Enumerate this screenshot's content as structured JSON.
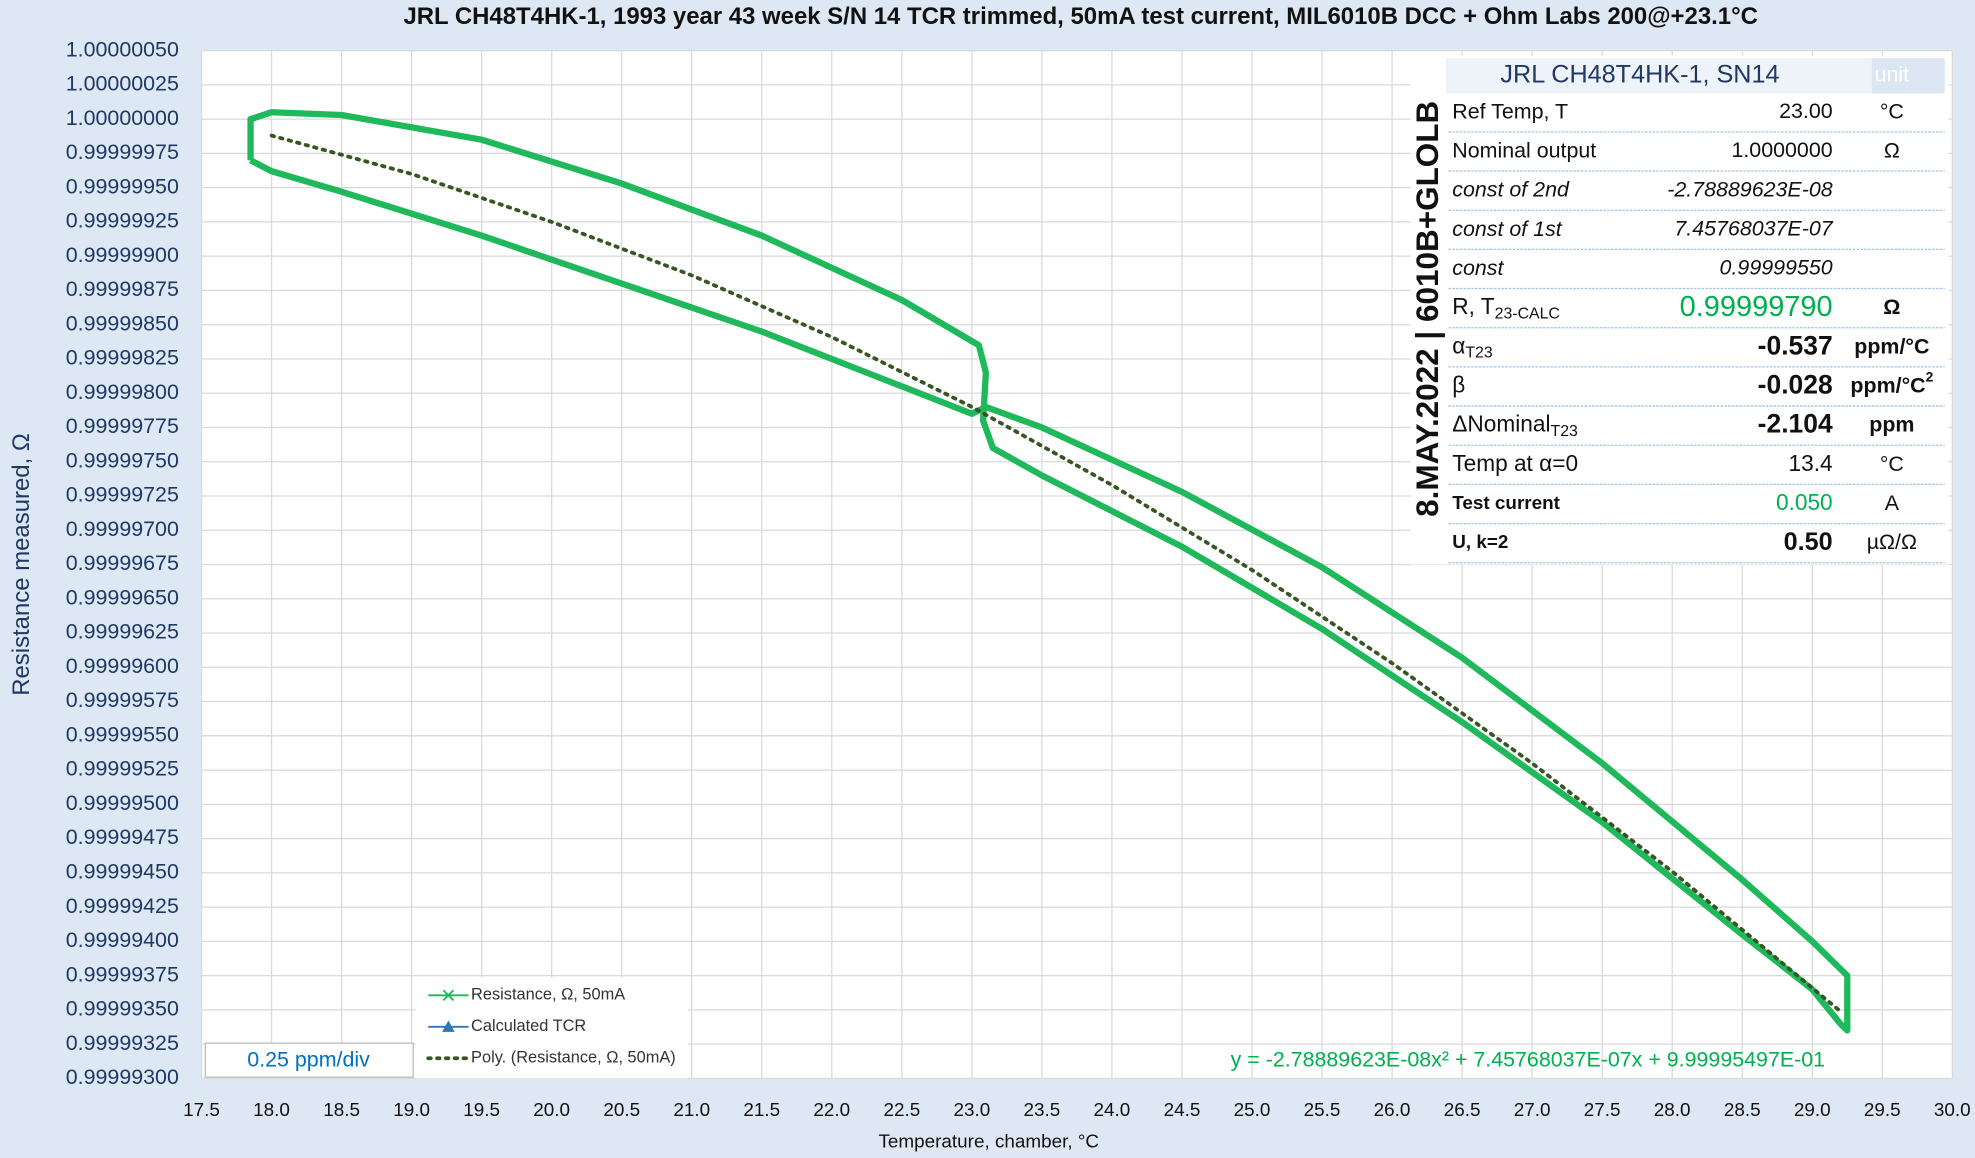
{
  "chart_data": {
    "type": "scatter",
    "title": "JRL CH48T4HK-1, 1993 year 43 week S/N 14 TCR trimmed, 50mA  test current, MIL6010B DCC + Ohm Labs 200@+23.1°C",
    "x_label": "Temperature, chamber, °C",
    "y_label": "Resistance measured, Ω",
    "scale_note": "0.25 ppm/div",
    "equation": "y = -2.78889623E-08x² + 7.45768037E-07x + 9.99995497E-01",
    "side_label": "8.MAY.2022 | 6010B+GLOLB",
    "grid": true,
    "xlim": [
      17.5,
      30.0
    ],
    "ylim": [
      0.999993,
      1.0000005
    ],
    "xticks": [
      {
        "value": 17.5,
        "label": "17.5"
      },
      {
        "value": 18,
        "label": "18.0"
      },
      {
        "value": 18.5,
        "label": "18.5"
      },
      {
        "value": 19,
        "label": "19.0"
      },
      {
        "value": 19.5,
        "label": "19.5"
      },
      {
        "value": 20,
        "label": "20.0"
      },
      {
        "value": 20.5,
        "label": "20.5"
      },
      {
        "value": 21,
        "label": "21.0"
      },
      {
        "value": 21.5,
        "label": "21.5"
      },
      {
        "value": 22,
        "label": "22.0"
      },
      {
        "value": 22.5,
        "label": "22.5"
      },
      {
        "value": 23,
        "label": "23.0"
      },
      {
        "value": 23.5,
        "label": "23.5"
      },
      {
        "value": 24,
        "label": "24.0"
      },
      {
        "value": 24.5,
        "label": "24.5"
      },
      {
        "value": 25,
        "label": "25.0"
      },
      {
        "value": 25.5,
        "label": "25.5"
      },
      {
        "value": 26,
        "label": "26.0"
      },
      {
        "value": 26.5,
        "label": "26.5"
      },
      {
        "value": 27,
        "label": "27.0"
      },
      {
        "value": 27.5,
        "label": "27.5"
      },
      {
        "value": 28,
        "label": "28.0"
      },
      {
        "value": 28.5,
        "label": "28.5"
      },
      {
        "value": 29,
        "label": "29.0"
      },
      {
        "value": 29.5,
        "label": "29.5"
      },
      {
        "value": 30,
        "label": "30.0"
      }
    ],
    "yticks": [
      {
        "value": 0.999993,
        "label": "0.99999300"
      },
      {
        "value": 0.99999325,
        "label": "0.99999325"
      },
      {
        "value": 0.9999935,
        "label": "0.99999350"
      },
      {
        "value": 0.99999375,
        "label": "0.99999375"
      },
      {
        "value": 0.999994,
        "label": "0.99999400"
      },
      {
        "value": 0.99999425,
        "label": "0.99999425"
      },
      {
        "value": 0.9999945,
        "label": "0.99999450"
      },
      {
        "value": 0.99999475,
        "label": "0.99999475"
      },
      {
        "value": 0.999995,
        "label": "0.99999500"
      },
      {
        "value": 0.99999525,
        "label": "0.99999525"
      },
      {
        "value": 0.9999955,
        "label": "0.99999550"
      },
      {
        "value": 0.99999575,
        "label": "0.99999575"
      },
      {
        "value": 0.999996,
        "label": "0.99999600"
      },
      {
        "value": 0.99999625,
        "label": "0.99999625"
      },
      {
        "value": 0.9999965,
        "label": "0.99999650"
      },
      {
        "value": 0.99999675,
        "label": "0.99999675"
      },
      {
        "value": 0.999997,
        "label": "0.99999700"
      },
      {
        "value": 0.99999725,
        "label": "0.99999725"
      },
      {
        "value": 0.9999975,
        "label": "0.99999750"
      },
      {
        "value": 0.99999775,
        "label": "0.99999775"
      },
      {
        "value": 0.999998,
        "label": "0.99999800"
      },
      {
        "value": 0.99999825,
        "label": "0.99999825"
      },
      {
        "value": 0.9999985,
        "label": "0.99999850"
      },
      {
        "value": 0.99999875,
        "label": "0.99999875"
      },
      {
        "value": 0.999999,
        "label": "0.99999900"
      },
      {
        "value": 0.99999925,
        "label": "0.99999925"
      },
      {
        "value": 0.9999995,
        "label": "0.99999950"
      },
      {
        "value": 0.99999975,
        "label": "0.99999975"
      },
      {
        "value": 1.0,
        "label": "1.00000000"
      },
      {
        "value": 1.00000025,
        "label": "1.00000025"
      },
      {
        "value": 1.0000005,
        "label": "1.00000050"
      }
    ],
    "series": [
      {
        "name": "Resistance, Ω, 50mA",
        "color": "#1fb85a",
        "style": "marker-line",
        "x": [
          17.85,
          17.85,
          18.0,
          18.5,
          19.5,
          20.5,
          21.5,
          22.5,
          23.05,
          23.1,
          23.08,
          23.15,
          23.5,
          24.5,
          25.5,
          26.5,
          27.5,
          28.5,
          29.0,
          29.2,
          29.25,
          29.25,
          29.0,
          28.5,
          27.5,
          26.5,
          25.5,
          24.5,
          23.5,
          23.1,
          23.0,
          22.5,
          21.5,
          20.5,
          19.5,
          18.5,
          18.0,
          17.85
        ],
        "values": [
          0.9999997,
          1.0,
          1.00000005,
          1.00000003,
          0.99999985,
          0.99999953,
          0.99999915,
          0.99999868,
          0.99999835,
          0.99999815,
          0.9999978,
          0.9999976,
          0.9999974,
          0.99999688,
          0.99999628,
          0.9999956,
          0.99999487,
          0.99999405,
          0.99999365,
          0.9999934,
          0.99999335,
          0.99999375,
          0.999994,
          0.99999445,
          0.9999953,
          0.99999607,
          0.99999673,
          0.99999728,
          0.99999775,
          0.9999979,
          0.99999785,
          0.99999805,
          0.99999845,
          0.9999988,
          0.99999915,
          0.99999947,
          0.99999962,
          0.9999997
        ]
      },
      {
        "name": "Calculated TCR",
        "color": "#2e75b6",
        "style": "triangle-line",
        "x": [],
        "values": []
      },
      {
        "name": "Poly. (Resistance, Ω, 50mA)",
        "color": "#375623",
        "style": "dotted",
        "x": [
          18,
          19,
          20,
          21,
          22,
          23,
          24,
          25,
          26,
          27,
          28,
          29.2
        ],
        "values": [
          0.99999988,
          0.9999996,
          0.99999925,
          0.99999886,
          0.99999841,
          0.9999979,
          0.99999733,
          0.99999671,
          0.99999603,
          0.9999953,
          0.99999451,
          0.99999349
        ]
      }
    ]
  },
  "table": {
    "title": "JRL CH48T4HK-1, SN14",
    "unit_header": "unit",
    "rows": [
      {
        "label": "Ref Temp, T",
        "value": "23.00",
        "unit": "°C"
      },
      {
        "label": "Nominal output",
        "value": "1.0000000",
        "unit": "Ω"
      },
      {
        "label": "const of 2nd",
        "value": "-2.78889623E-08"
      },
      {
        "label": "const of 1st",
        "value": "7.45768037E-07"
      },
      {
        "label": "const",
        "value": "0.99999550"
      },
      {
        "label": "R, T",
        "sub": "23-CALC",
        "value": "0.99999790",
        "unit": "Ω"
      },
      {
        "label": "α",
        "sub": "T23",
        "value": "-0.537",
        "unit": "ppm/°C"
      },
      {
        "label": "β",
        "value": "-0.028",
        "unit": "ppm/°C",
        "unit_sup": "2"
      },
      {
        "label": "ΔNominal",
        "sub": "T23",
        "value": "-2.104",
        "unit": "ppm"
      },
      {
        "label": "Temp at α=0",
        "value": "13.4",
        "unit": "°C"
      },
      {
        "label": "Test current",
        "value": "0.050",
        "unit": "A"
      },
      {
        "label": "U, k=2",
        "value": "0.50",
        "unit": "µΩ/Ω"
      }
    ]
  }
}
